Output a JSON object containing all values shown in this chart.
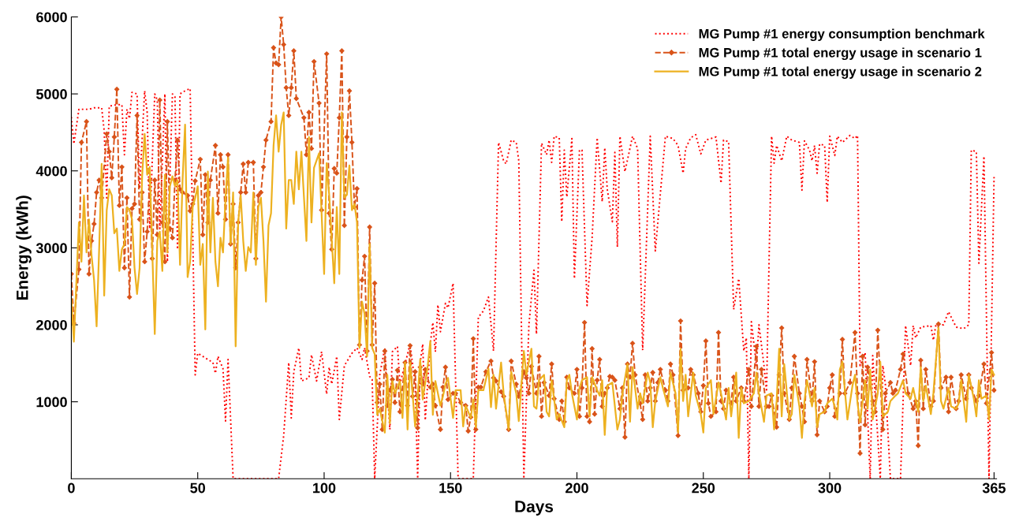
{
  "chart_data": {
    "type": "line",
    "xlabel": "Days",
    "ylabel": "Energy (kWh)",
    "xlim": [
      0,
      366
    ],
    "xticks": [
      0,
      50,
      100,
      150,
      200,
      250,
      300,
      365
    ],
    "ylim": [
      0,
      6000
    ],
    "yticks": [
      1000,
      2000,
      3000,
      4000,
      5000,
      6000
    ],
    "grid": false,
    "legend": "top right",
    "series": [
      {
        "name": "MG Pump #1 energy consumption benchmark",
        "color": "#ff0000",
        "line_style": "dotted",
        "marker": "none",
        "x": [
          0,
          1,
          3,
          7,
          9,
          12,
          13,
          14,
          15,
          18,
          20,
          21,
          22,
          23,
          24,
          26,
          27,
          29,
          30,
          31,
          33,
          34,
          35,
          37,
          38,
          40,
          41,
          42,
          43,
          45,
          47,
          49,
          50,
          54,
          56,
          57,
          58,
          60,
          61,
          62,
          64,
          82,
          84,
          86,
          87,
          88,
          90,
          91,
          94,
          95,
          97,
          99,
          101,
          102,
          103,
          105,
          106,
          108,
          111,
          113,
          115,
          116,
          118,
          119,
          120,
          122,
          124,
          126,
          127,
          129,
          130,
          134,
          136,
          137,
          138,
          139,
          140,
          142,
          143,
          144,
          145,
          146,
          148,
          149,
          151,
          153,
          159,
          161,
          163,
          165,
          167,
          169,
          171,
          172,
          174,
          176,
          177,
          179,
          181,
          183,
          184,
          186,
          188,
          189,
          190,
          191,
          193,
          194,
          195,
          196,
          198,
          199,
          201,
          202,
          204,
          206,
          208,
          210,
          211,
          212,
          214,
          215,
          216,
          217,
          219,
          222,
          224,
          226,
          229,
          231,
          235,
          238,
          240,
          242,
          243,
          245,
          247,
          249,
          251,
          252,
          255,
          257,
          258,
          260,
          262,
          264,
          266,
          267,
          268,
          269,
          271,
          272,
          274,
          275,
          276,
          277,
          278,
          279,
          281,
          283,
          285,
          288,
          289,
          290,
          292,
          293,
          294,
          295,
          296,
          298,
          299,
          300,
          302,
          303,
          305,
          308,
          310,
          311,
          312,
          314,
          316,
          317,
          320,
          321,
          322,
          324,
          328,
          330,
          332,
          333,
          334,
          336,
          340,
          341,
          342,
          345,
          347,
          350,
          353,
          355,
          356,
          358,
          359,
          361,
          363,
          365
        ],
        "values": [
          4700,
          4350,
          4800,
          4800,
          4820,
          4820,
          4520,
          3650,
          4840,
          4860,
          4860,
          4210,
          4800,
          4680,
          5020,
          5000,
          3770,
          5040,
          4760,
          3250,
          5000,
          4920,
          3250,
          5000,
          2820,
          5000,
          4960,
          2980,
          5000,
          5040,
          5070,
          1350,
          1630,
          1550,
          1510,
          1370,
          1590,
          1430,
          750,
          1550,
          0,
          0,
          560,
          1510,
          790,
          1390,
          1700,
          1270,
          1310,
          1610,
          1270,
          1650,
          1100,
          1450,
          1230,
          1590,
          770,
          1470,
          1630,
          1700,
          1550,
          1700,
          1330,
          1290,
          0,
          1350,
          1700,
          640,
          1650,
          1720,
          1230,
          1750,
          1230,
          0,
          1510,
          1750,
          760,
          1750,
          2030,
          1650,
          2260,
          1910,
          2280,
          2220,
          2540,
          0,
          0,
          2100,
          2180,
          2360,
          1660,
          4370,
          4130,
          4090,
          4400,
          4370,
          4130,
          0,
          2000,
          2710,
          1880,
          4360,
          4210,
          4400,
          4110,
          4450,
          4430,
          3340,
          4270,
          3660,
          4420,
          2600,
          4270,
          4270,
          2250,
          3130,
          4430,
          3600,
          4300,
          3760,
          3340,
          4240,
          3010,
          4450,
          3990,
          4450,
          4290,
          1670,
          4450,
          2960,
          4450,
          4420,
          4330,
          3970,
          4290,
          4430,
          4470,
          4220,
          4400,
          4410,
          4440,
          3840,
          4400,
          4380,
          2200,
          2600,
          1660,
          1830,
          0,
          2040,
          1470,
          2000,
          1470,
          1130,
          2830,
          4450,
          4100,
          4330,
          4130,
          4450,
          4400,
          4370,
          3750,
          4390,
          4270,
          4130,
          4330,
          3970,
          4350,
          4330,
          3590,
          4450,
          4200,
          4450,
          4370,
          4460,
          4420,
          4460,
          1470,
          1640,
          0,
          1600,
          0,
          1470,
          1230,
          0,
          0,
          1990,
          1470,
          1990,
          1830,
          1970,
          1990,
          1800,
          2000,
          2000,
          2170,
          1970,
          1950,
          2000,
          4270,
          4250,
          2800,
          4190,
          0,
          3920
        ]
      },
      {
        "name": "MG Pump #1 total energy usage in scenario 1",
        "color": "#d95319",
        "line_style": "dashed",
        "marker": "diamond",
        "x": [
          0,
          1,
          3,
          4,
          6,
          7,
          8,
          9,
          10,
          11,
          12,
          14,
          15,
          16,
          17,
          18,
          19,
          20,
          21,
          22,
          23,
          24,
          25,
          26,
          27,
          28,
          29,
          30,
          31,
          32,
          33,
          34,
          35,
          36,
          37,
          38,
          39,
          40,
          41,
          42,
          43,
          44,
          46,
          47,
          48,
          49,
          51,
          52,
          53,
          54,
          55,
          57,
          58,
          59,
          60,
          61,
          62,
          63,
          64,
          65,
          66,
          67,
          68,
          69,
          70,
          72,
          73,
          74,
          75,
          76,
          77,
          79,
          80,
          81,
          82,
          83,
          84,
          85,
          86,
          87,
          88,
          89,
          92,
          93,
          94,
          95,
          96,
          98,
          99,
          101,
          102,
          103,
          104,
          105,
          106,
          107,
          108,
          109,
          110,
          111,
          112,
          113,
          114,
          115,
          116,
          117,
          118,
          119,
          120,
          121,
          122,
          123,
          124,
          125,
          126,
          127,
          128,
          129,
          130,
          132,
          133,
          134,
          135,
          136,
          137,
          138,
          139,
          140,
          142,
          143,
          144,
          146,
          147,
          148,
          149,
          151,
          152,
          154,
          156,
          157,
          158,
          159,
          160,
          161,
          162,
          164,
          166,
          167,
          168,
          170,
          171,
          173,
          174,
          176,
          177,
          179,
          180,
          181,
          182,
          184,
          185,
          186,
          187,
          189,
          190,
          191,
          193,
          194,
          195,
          196,
          197,
          199,
          200,
          201,
          202,
          203,
          204,
          205,
          206,
          207,
          208,
          209,
          210,
          211,
          212,
          213,
          214,
          215,
          217,
          218,
          219,
          220,
          221,
          222,
          223,
          225,
          226,
          227,
          228,
          229,
          230,
          231,
          232,
          233,
          235,
          236,
          237,
          238,
          240,
          241,
          242,
          244,
          245,
          246,
          248,
          249,
          250,
          251,
          252,
          253,
          255,
          256,
          257,
          258,
          259,
          261,
          262,
          263,
          265,
          266,
          268,
          269,
          271,
          272,
          273,
          275,
          276,
          277,
          279,
          280,
          281,
          282,
          284,
          285,
          286,
          288,
          289,
          290,
          291,
          293,
          294,
          295,
          296,
          298,
          299,
          300,
          301,
          302,
          304,
          305,
          306,
          308,
          310,
          311,
          312,
          313,
          314,
          315,
          317,
          318,
          319,
          321,
          322,
          324,
          325,
          326,
          328,
          329,
          331,
          333,
          334,
          335,
          336,
          337,
          338,
          340,
          341,
          343,
          344,
          346,
          347,
          348,
          350,
          351,
          352,
          354,
          355,
          356,
          358,
          359,
          361,
          362,
          364,
          365
        ],
        "values": [
          2660,
          2020,
          2720,
          4370,
          4640,
          2660,
          3090,
          3310,
          3720,
          3880,
          3650,
          4480,
          4250,
          3910,
          4440,
          5060,
          3550,
          4050,
          2740,
          3650,
          2360,
          3510,
          3570,
          4720,
          3370,
          3720,
          2820,
          3210,
          3880,
          2860,
          3880,
          3170,
          4920,
          3330,
          2820,
          4640,
          3250,
          3130,
          3880,
          4400,
          3760,
          3720,
          3680,
          3480,
          3570,
          3870,
          4150,
          3170,
          3950,
          3330,
          3880,
          4330,
          3450,
          4210,
          4050,
          3370,
          4210,
          3050,
          3570,
          2740,
          3330,
          3720,
          4090,
          3720,
          4110,
          4110,
          2860,
          3680,
          3720,
          4050,
          4400,
          4640,
          5600,
          5400,
          5380,
          6000,
          5640,
          5080,
          4720,
          5080,
          5560,
          4940,
          4690,
          4210,
          4760,
          4290,
          5420,
          4880,
          3490,
          5520,
          3450,
          2980,
          4030,
          3970,
          4690,
          5560,
          3290,
          4440,
          5040,
          4370,
          3530,
          3770,
          1740,
          2580,
          2890,
          1660,
          3270,
          1740,
          2540,
          990,
          1230,
          640,
          1660,
          950,
          1150,
          1290,
          990,
          1410,
          870,
          1510,
          950,
          1730,
          1070,
          1390,
          660,
          1450,
          1230,
          1420,
          1190,
          1230,
          950,
          640,
          1190,
          1450,
          1030,
          1110,
          1110,
          990,
          950,
          620,
          800,
          1820,
          640,
          1190,
          1190,
          1390,
          1530,
          1310,
          1270,
          1130,
          1070,
          640,
          1530,
          1230,
          1070,
          1390,
          1310,
          1110,
          1460,
          1110,
          1590,
          810,
          1250,
          1080,
          1490,
          1040,
          770,
          1010,
          740,
          1320,
          1180,
          1110,
          1420,
          810,
          1180,
          2030,
          810,
          740,
          1690,
          840,
          1280,
          1550,
          940,
          1110,
          1180,
          1330,
          1320,
          1280,
          910,
          1180,
          540,
          1490,
          1320,
          1760,
          1350,
          980,
          770,
          1350,
          1010,
          1180,
          1380,
          1010,
          1250,
          1420,
          1150,
          1010,
          1490,
          1350,
          560,
          2050,
          1150,
          1180,
          1420,
          1350,
          1110,
          870,
          1210,
          1790,
          980,
          810,
          870,
          1900,
          1010,
          910,
          1150,
          980,
          1320,
          1010,
          1180,
          1010,
          1420,
          940,
          1720,
          940,
          1420,
          940,
          940,
          1080,
          670,
          1350,
          1960,
          1110,
          770,
          1180,
          1590,
          1110,
          940,
          740,
          1550,
          1010,
          1520,
          570,
          1010,
          870,
          940,
          1180,
          1350,
          810,
          1110,
          1810,
          1110,
          1250,
          1900,
          1110,
          330,
          1590,
          700,
          1450,
          1010,
          870,
          1930,
          640,
          1110,
          1250,
          1110,
          1150,
          1420,
          1620,
          1110,
          910,
          1010,
          430,
          1540,
          910,
          1420,
          940,
          1010,
          2010,
          1180,
          1320,
          870,
          1320,
          910,
          1010,
          1350,
          1040,
          1350,
          1180,
          1010,
          1080,
          1490,
          980,
          1640,
          1150
        ]
      },
      {
        "name": "MG Pump #1 total energy usage in scenario 2",
        "color": "#edb120",
        "line_style": "solid",
        "marker": "none",
        "x": [
          0,
          1,
          3,
          4,
          5,
          6,
          7,
          8,
          9,
          10,
          11,
          12,
          13,
          14,
          15,
          16,
          17,
          18,
          19,
          20,
          21,
          22,
          23,
          24,
          25,
          26,
          27,
          28,
          29,
          30,
          31,
          32,
          33,
          34,
          35,
          36,
          37,
          38,
          39,
          40,
          41,
          42,
          43,
          44,
          45,
          46,
          47,
          48,
          49,
          50,
          51,
          52,
          53,
          54,
          55,
          56,
          57,
          58,
          59,
          60,
          61,
          62,
          63,
          64,
          65,
          66,
          67,
          68,
          69,
          70,
          71,
          72,
          73,
          74,
          75,
          76,
          77,
          78,
          79,
          80,
          81,
          82,
          83,
          84,
          85,
          86,
          87,
          88,
          89,
          90,
          91,
          93,
          94,
          95,
          96,
          98,
          100,
          101,
          102,
          104,
          105,
          106,
          107,
          108,
          109,
          110,
          111,
          112,
          113,
          114,
          115,
          116,
          117,
          118,
          119,
          120,
          121,
          122,
          124,
          125,
          126,
          127,
          128,
          130,
          131,
          132,
          133,
          134,
          136,
          137,
          138,
          139,
          141,
          142,
          143,
          144,
          146,
          147,
          148,
          149,
          151,
          152,
          154,
          155,
          156,
          158,
          159,
          160,
          161,
          163,
          165,
          166,
          167,
          168,
          170,
          171,
          173,
          174,
          176,
          177,
          179,
          180,
          182,
          183,
          184,
          185,
          187,
          188,
          189,
          190,
          192,
          193,
          195,
          196,
          197,
          198,
          200,
          201,
          202,
          204,
          205,
          206,
          208,
          209,
          210,
          211,
          212,
          214,
          216,
          217,
          218,
          220,
          221,
          222,
          224,
          225,
          226,
          228,
          229,
          230,
          231,
          233,
          234,
          236,
          237,
          239,
          240,
          241,
          242,
          243,
          244,
          246,
          247,
          249,
          250,
          251,
          253,
          254,
          256,
          257,
          259,
          260,
          261,
          263,
          264,
          265,
          266,
          268,
          270,
          271,
          272,
          274,
          275,
          277,
          278,
          279,
          280,
          281,
          282,
          284,
          285,
          286,
          288,
          289,
          290,
          291,
          293,
          294,
          295,
          296,
          298,
          299,
          301,
          302,
          303,
          304,
          305,
          307,
          309,
          310,
          311,
          312,
          314,
          315,
          316,
          317,
          319,
          320,
          321,
          323,
          324,
          326,
          327,
          329,
          330,
          332,
          333,
          335,
          336,
          337,
          338,
          340,
          341,
          343,
          344,
          345,
          347,
          348,
          350,
          351,
          352,
          354,
          355,
          357,
          358,
          359,
          360,
          362,
          363,
          364,
          365
        ],
        "values": [
          2340,
          1780,
          3330,
          2820,
          3680,
          2940,
          3370,
          2900,
          2580,
          1980,
          2980,
          4090,
          2380,
          3490,
          3760,
          3680,
          3190,
          3250,
          2700,
          2980,
          3050,
          3530,
          3490,
          3370,
          2740,
          2400,
          2740,
          3930,
          4480,
          3950,
          4050,
          2980,
          1880,
          3090,
          3210,
          2700,
          3950,
          2940,
          3800,
          3930,
          3800,
          3880,
          2780,
          3880,
          4600,
          2620,
          2820,
          3530,
          3650,
          3800,
          2780,
          3050,
          1940,
          3990,
          2940,
          3650,
          2820,
          2500,
          3130,
          2940,
          3650,
          4170,
          3050,
          3720,
          1720,
          3330,
          3680,
          3090,
          2700,
          3010,
          2940,
          3720,
          2780,
          3530,
          3650,
          3090,
          2300,
          3290,
          3450,
          4330,
          4720,
          4250,
          4600,
          4760,
          3250,
          3880,
          3880,
          3570,
          4250,
          3760,
          4250,
          3090,
          4440,
          3330,
          4040,
          4230,
          2660,
          4100,
          3690,
          2540,
          3530,
          2660,
          4760,
          3650,
          3690,
          4070,
          3490,
          3570,
          3330,
          1700,
          2300,
          2140,
          1590,
          3050,
          1700,
          1620,
          830,
          910,
          600,
          1350,
          720,
          1270,
          1110,
          1270,
          790,
          1510,
          640,
          1510,
          680,
          1070,
          1550,
          1030,
          1470,
          1790,
          830,
          1270,
          950,
          1070,
          1230,
          1310,
          790,
          1150,
          1150,
          680,
          950,
          790,
          1030,
          670,
          1150,
          1150,
          1430,
          930,
          1350,
          910,
          1510,
          1110,
          640,
          1390,
          1110,
          750,
          1660,
          1350,
          1690,
          940,
          910,
          1280,
          1350,
          870,
          810,
          1280,
          770,
          840,
          670,
          1280,
          1350,
          1110,
          770,
          1180,
          1280,
          1320,
          810,
          1320,
          1150,
          1080,
          1280,
          570,
          1210,
          1250,
          640,
          770,
          1110,
          1490,
          740,
          1450,
          910,
          1110,
          980,
          1380,
          1250,
          670,
          1010,
          1320,
          1180,
          940,
          1380,
          1110,
          600,
          1690,
          1010,
          1350,
          810,
          1380,
          1080,
          840,
          600,
          1180,
          1280,
          840,
          1250,
          1110,
          770,
          1180,
          810,
          1380,
          530,
          1180,
          980,
          1010,
          1110,
          1380,
          1110,
          740,
          1080,
          1110,
          640,
          1010,
          1690,
          810,
          1490,
          770,
          840,
          1350,
          940,
          530,
          1010,
          1280,
          940,
          1180,
          670,
          840,
          870,
          980,
          1040,
          940,
          770,
          1420,
          1520,
          770,
          1210,
          1350,
          980,
          740,
          1280,
          910,
          1420,
          770,
          1110,
          1520,
          810,
          870,
          1010,
          1080,
          1110,
          1280,
          1110,
          1040,
          1180,
          870,
          1450,
          1010,
          1210,
          840,
          1110,
          1960,
          1010,
          910,
          1180,
          940,
          910,
          980,
          1280,
          740,
          1350,
          1040,
          810,
          1280,
          1040,
          1080,
          770,
          1420,
          1350
        ]
      }
    ]
  }
}
